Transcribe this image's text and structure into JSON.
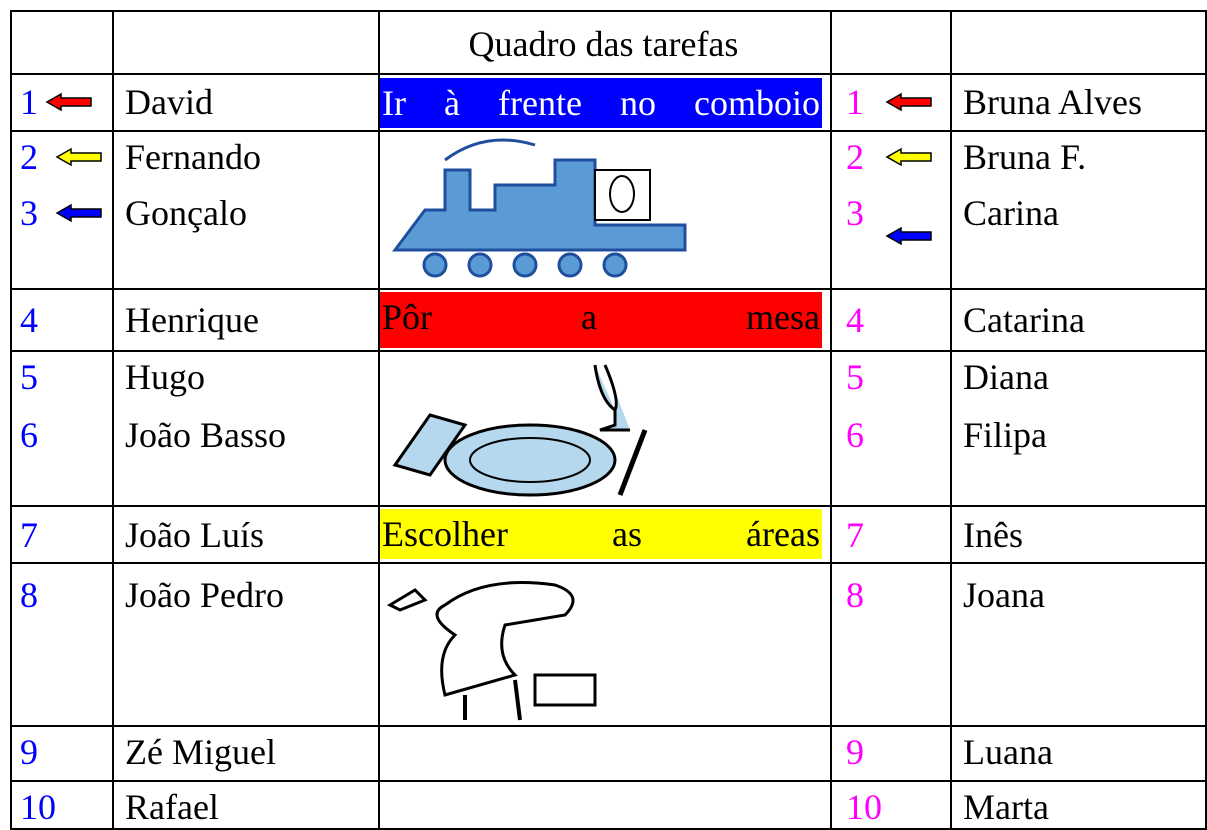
{
  "header": {
    "title": "Quadro das tarefas"
  },
  "tasks": [
    "Ir à frente no comboio",
    "Pôr a mesa",
    "Escolher as áreas"
  ],
  "left": [
    {
      "number": 1,
      "name": "David"
    },
    {
      "number": 2,
      "name": "Fernando"
    },
    {
      "number": 3,
      "name": "Gonçalo"
    },
    {
      "number": 4,
      "name": "Henrique"
    },
    {
      "number": 5,
      "name": "Hugo"
    },
    {
      "number": 6,
      "name": "João Basso"
    },
    {
      "number": 7,
      "name": "João Luís"
    },
    {
      "number": 8,
      "name": "João Pedro"
    },
    {
      "number": 9,
      "name": "Zé Miguel"
    },
    {
      "number": 10,
      "name": "Rafael"
    }
  ],
  "right": [
    {
      "number": 1,
      "name": "Bruna Alves"
    },
    {
      "number": 2,
      "name": "Bruna F."
    },
    {
      "number": 3,
      "name": "Carina"
    },
    {
      "number": 4,
      "name": "Catarina"
    },
    {
      "number": 5,
      "name": "Diana"
    },
    {
      "number": 6,
      "name": "Filipa"
    },
    {
      "number": 7,
      "name": "Inês"
    },
    {
      "number": 8,
      "name": "Joana"
    },
    {
      "number": 9,
      "name": "Luana"
    },
    {
      "number": 10,
      "name": "Marta"
    }
  ]
}
